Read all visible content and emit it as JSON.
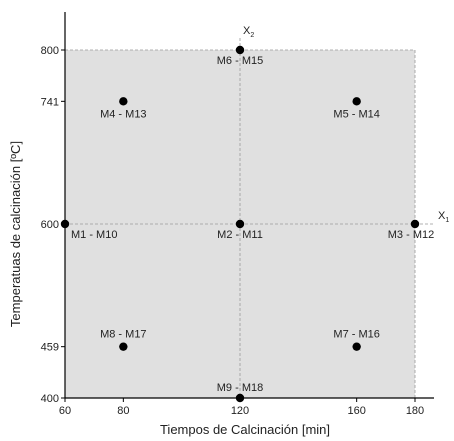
{
  "chart_data": {
    "type": "scatter",
    "xlabel": "Tiempos de Calcinación [min]",
    "ylabel": "Temperatuas de calcinación [ºC]",
    "x_ticks": [
      60,
      80,
      120,
      160,
      180
    ],
    "y_ticks": [
      400,
      459,
      600,
      741,
      800
    ],
    "xlim": [
      60,
      180
    ],
    "ylim": [
      400,
      800
    ],
    "grid": false,
    "region_fill": "#e0e0e0",
    "point_color": "#000000",
    "axis_var_labels": {
      "x": {
        "letter": "X",
        "sub": "1"
      },
      "y": {
        "letter": "X",
        "sub": "2"
      }
    },
    "points": [
      {
        "x": 60,
        "y": 600,
        "label": "M1 - M10"
      },
      {
        "x": 120,
        "y": 600,
        "label": "M2 - M11"
      },
      {
        "x": 180,
        "y": 600,
        "label": "M3 - M12"
      },
      {
        "x": 80,
        "y": 741,
        "label": "M4 - M13"
      },
      {
        "x": 160,
        "y": 741,
        "label": "M5 - M14"
      },
      {
        "x": 120,
        "y": 800,
        "label": "M6 - M15"
      },
      {
        "x": 160,
        "y": 459,
        "label": "M7 - M16"
      },
      {
        "x": 80,
        "y": 459,
        "label": "M8 - M17"
      },
      {
        "x": 120,
        "y": 400,
        "label": "M9 - M18"
      }
    ]
  }
}
